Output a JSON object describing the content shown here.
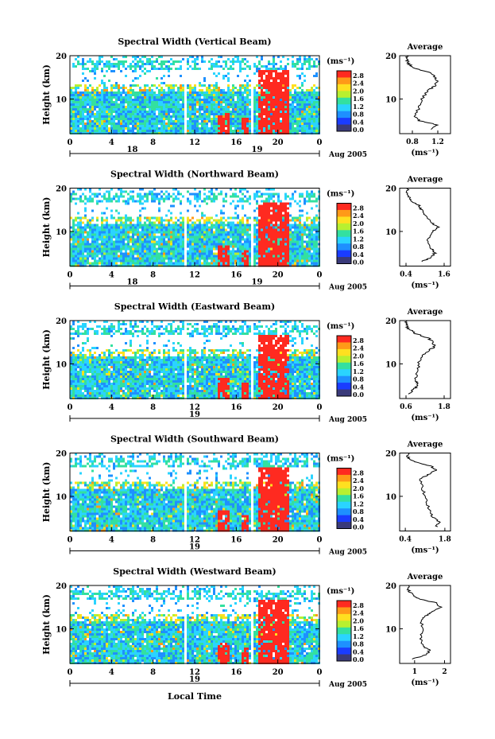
{
  "figure": {
    "xlabel": "Local Time",
    "avg_title": "Average",
    "unit": "(ms⁻¹)",
    "height_label": "Height (km)",
    "date_label": "Aug 2005",
    "colorbar_ticks": [
      "2.8",
      "2.4",
      "2.0",
      "1.6",
      "1.2",
      "0.8",
      "0.4",
      "0.0"
    ],
    "colorbar_colors": [
      "#3a3a7a",
      "#1a3cff",
      "#1e90ff",
      "#2ad4ff",
      "#33e0a0",
      "#b8f030",
      "#ffe020",
      "#ff9a18",
      "#ff2a20"
    ]
  },
  "chart_data": [
    {
      "type": "heatmap",
      "title": "Spectral Width (Vertical Beam)",
      "x_ticks": [
        "0",
        "4",
        "8",
        "12",
        "16",
        "20",
        "0"
      ],
      "y_ticks": [
        "20",
        "10"
      ],
      "day_labels": [
        "18",
        "19"
      ],
      "avg_x_ticks": [
        "0.8",
        "1.2"
      ],
      "avg_xlim": [
        0.6,
        1.4
      ],
      "avg_profile": {
        "height": [
          3,
          4,
          5,
          6,
          8,
          10,
          12,
          13,
          14,
          15,
          16,
          17,
          18,
          19,
          20
        ],
        "value": [
          1.1,
          1.2,
          0.9,
          0.85,
          0.9,
          0.95,
          1.05,
          1.15,
          1.2,
          1.15,
          1.1,
          0.85,
          0.75,
          0.72,
          0.72
        ]
      }
    },
    {
      "type": "heatmap",
      "title": "Spectral Width (Northward Beam)",
      "x_ticks": [
        "0",
        "4",
        "8",
        "12",
        "16",
        "20",
        "0"
      ],
      "y_ticks": [
        "20",
        "10"
      ],
      "day_labels": [
        "18",
        "19"
      ],
      "avg_x_ticks": [
        "0.4",
        "1.6"
      ],
      "avg_xlim": [
        0.2,
        1.8
      ],
      "avg_profile": {
        "height": [
          3,
          4,
          5,
          6,
          8,
          10,
          11,
          12,
          14,
          15,
          16,
          17,
          18,
          19,
          20
        ],
        "value": [
          0.9,
          1.2,
          1.3,
          1.2,
          1.1,
          1.25,
          1.4,
          1.2,
          1.0,
          0.9,
          0.8,
          0.6,
          0.5,
          0.45,
          0.45
        ]
      }
    },
    {
      "type": "heatmap",
      "title": "Spectral Width (Eastward Beam)",
      "x_ticks": [
        "0",
        "4",
        "8",
        "12",
        "16",
        "20",
        "0"
      ],
      "y_ticks": [
        "20",
        "10"
      ],
      "day_labels": [
        "19"
      ],
      "avg_x_ticks": [
        "0.6",
        "1.8"
      ],
      "avg_xlim": [
        0.4,
        2.0
      ],
      "avg_profile": {
        "height": [
          3,
          4,
          5,
          6,
          8,
          10,
          12,
          13,
          14,
          15,
          16,
          17,
          18,
          19,
          20
        ],
        "value": [
          0.7,
          0.8,
          1.0,
          0.9,
          0.95,
          1.0,
          1.1,
          1.3,
          1.5,
          1.45,
          1.3,
          0.9,
          0.7,
          0.6,
          0.6
        ]
      }
    },
    {
      "type": "heatmap",
      "title": "Spectral Width (Southward Beam)",
      "x_ticks": [
        "0",
        "4",
        "8",
        "12",
        "16",
        "20",
        "0"
      ],
      "y_ticks": [
        "20",
        "10"
      ],
      "day_labels": [
        "19"
      ],
      "avg_x_ticks": [
        "0.4",
        "1.8"
      ],
      "avg_xlim": [
        0.2,
        2.0
      ],
      "avg_profile": {
        "height": [
          3,
          4,
          5,
          6,
          8,
          10,
          12,
          14,
          15,
          16,
          17,
          18,
          19,
          20
        ],
        "value": [
          1.5,
          1.6,
          1.4,
          1.3,
          1.2,
          1.1,
          1.0,
          0.9,
          1.2,
          1.5,
          1.3,
          0.7,
          0.5,
          0.5
        ]
      }
    },
    {
      "type": "heatmap",
      "title": "Spectral Width (Westward Beam)",
      "x_ticks": [
        "0",
        "4",
        "8",
        "12",
        "16",
        "20",
        "0"
      ],
      "y_ticks": [
        "20",
        "10"
      ],
      "day_labels": [
        "19"
      ],
      "avg_x_ticks": [
        "1",
        "2"
      ],
      "avg_xlim": [
        0.5,
        2.2
      ],
      "avg_profile": {
        "height": [
          3,
          4,
          5,
          6,
          8,
          10,
          12,
          13,
          14,
          15,
          16,
          17,
          18,
          19,
          20
        ],
        "value": [
          0.9,
          1.4,
          1.5,
          1.3,
          1.2,
          1.3,
          1.2,
          1.4,
          1.6,
          1.9,
          1.7,
          1.1,
          0.9,
          0.8,
          0.8
        ]
      }
    }
  ]
}
